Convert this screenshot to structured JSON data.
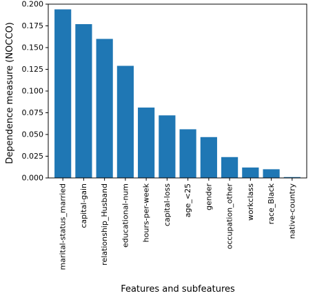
{
  "chart_data": {
    "type": "bar",
    "title": "",
    "xlabel": "Features and subfeatures",
    "ylabel": "Dependence measure (NOCCO)",
    "ylim": [
      0,
      0.2
    ],
    "yticks": [
      "0.000",
      "0.025",
      "0.050",
      "0.075",
      "0.100",
      "0.125",
      "0.150",
      "0.175",
      "0.200"
    ],
    "grid": false,
    "bar_color": "#1f77b4",
    "categories": [
      "marital-status_married",
      "capital-gain",
      "relationship_Husband",
      "educational-num",
      "hours-per-week",
      "capital-loss",
      "age_<25",
      "gender",
      "occupation_other",
      "workclass",
      "race_Black",
      "native-country"
    ],
    "values": [
      0.194,
      0.177,
      0.16,
      0.129,
      0.081,
      0.072,
      0.056,
      0.047,
      0.024,
      0.012,
      0.01,
      0.001
    ]
  }
}
